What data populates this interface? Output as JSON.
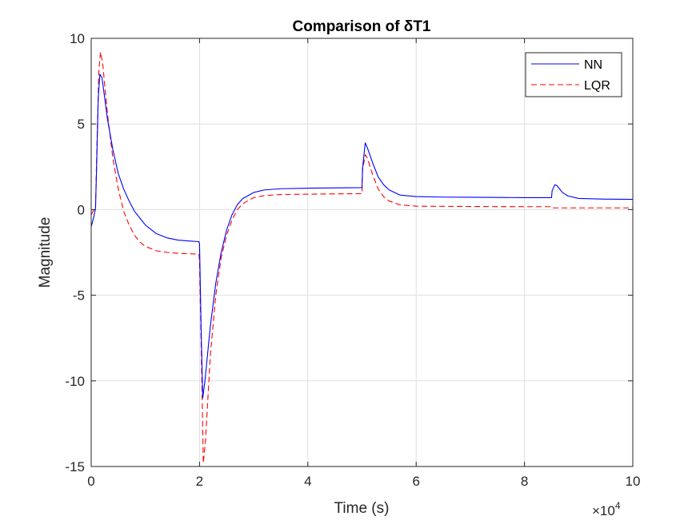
{
  "chart_data": {
    "type": "line",
    "title": "Comparison of δT1",
    "xlabel": "Time (s)",
    "ylabel": "Magnitude",
    "x_exponent_label": "×10",
    "x_exponent_power": "4",
    "xlim": [
      0,
      100000
    ],
    "ylim": [
      -15,
      10
    ],
    "grid": true,
    "legend_position": "top-right",
    "x_ticks": [
      0,
      20000,
      40000,
      60000,
      80000,
      100000
    ],
    "x_tick_labels": [
      "0",
      "2",
      "4",
      "6",
      "8",
      "10"
    ],
    "y_ticks": [
      -15,
      -10,
      -5,
      0,
      5,
      10
    ],
    "y_tick_labels": [
      "-15",
      "-10",
      "-5",
      "0",
      "5",
      "10"
    ],
    "series": [
      {
        "name": "NN",
        "color": "#0000ff",
        "style": "solid",
        "points": [
          [
            0,
            -1.0
          ],
          [
            500,
            -0.4
          ],
          [
            800,
            0.1
          ],
          [
            1000,
            2.5
          ],
          [
            1300,
            6.5
          ],
          [
            1600,
            7.9
          ],
          [
            2000,
            7.7
          ],
          [
            3000,
            5.3
          ],
          [
            4000,
            3.5
          ],
          [
            5000,
            2.1
          ],
          [
            6000,
            1.2
          ],
          [
            7000,
            0.5
          ],
          [
            8000,
            -0.1
          ],
          [
            9000,
            -0.5
          ],
          [
            10000,
            -0.9
          ],
          [
            12000,
            -1.4
          ],
          [
            14000,
            -1.65
          ],
          [
            16000,
            -1.78
          ],
          [
            18000,
            -1.83
          ],
          [
            19900,
            -1.87
          ],
          [
            20000,
            -2.0
          ],
          [
            20300,
            -7.0
          ],
          [
            20600,
            -11.0
          ],
          [
            21000,
            -10.0
          ],
          [
            22000,
            -6.8
          ],
          [
            23000,
            -4.3
          ],
          [
            24000,
            -2.5
          ],
          [
            25000,
            -1.2
          ],
          [
            26000,
            -0.3
          ],
          [
            27000,
            0.3
          ],
          [
            28000,
            0.65
          ],
          [
            30000,
            1.0
          ],
          [
            32000,
            1.15
          ],
          [
            35000,
            1.22
          ],
          [
            40000,
            1.25
          ],
          [
            45000,
            1.27
          ],
          [
            50000,
            1.28
          ],
          [
            50100,
            2.4
          ],
          [
            50600,
            3.9
          ],
          [
            51000,
            3.6
          ],
          [
            52000,
            2.7
          ],
          [
            53000,
            1.9
          ],
          [
            54000,
            1.45
          ],
          [
            55000,
            1.15
          ],
          [
            57000,
            0.85
          ],
          [
            60000,
            0.76
          ],
          [
            65000,
            0.73
          ],
          [
            70000,
            0.72
          ],
          [
            75000,
            0.71
          ],
          [
            80000,
            0.7
          ],
          [
            85000,
            0.7
          ],
          [
            85100,
            1.1
          ],
          [
            85600,
            1.45
          ],
          [
            86000,
            1.4
          ],
          [
            87000,
            1.0
          ],
          [
            88000,
            0.8
          ],
          [
            90000,
            0.65
          ],
          [
            95000,
            0.61
          ],
          [
            100000,
            0.6
          ]
        ]
      },
      {
        "name": "LQR",
        "color": "#ff0000",
        "style": "dashed",
        "points": [
          [
            0,
            -0.3
          ],
          [
            500,
            0.0
          ],
          [
            800,
            0.1
          ],
          [
            1000,
            3.0
          ],
          [
            1400,
            8.0
          ],
          [
            1700,
            9.2
          ],
          [
            2100,
            8.6
          ],
          [
            3000,
            5.6
          ],
          [
            4000,
            3.0
          ],
          [
            5000,
            1.2
          ],
          [
            6000,
            -0.1
          ],
          [
            7000,
            -0.9
          ],
          [
            8000,
            -1.5
          ],
          [
            9000,
            -1.9
          ],
          [
            10000,
            -2.15
          ],
          [
            12000,
            -2.4
          ],
          [
            14000,
            -2.5
          ],
          [
            16000,
            -2.55
          ],
          [
            18000,
            -2.58
          ],
          [
            19900,
            -2.6
          ],
          [
            20000,
            -3.0
          ],
          [
            20400,
            -9.5
          ],
          [
            20700,
            -14.8
          ],
          [
            21100,
            -13.5
          ],
          [
            22000,
            -8.5
          ],
          [
            23000,
            -5.0
          ],
          [
            24000,
            -2.8
          ],
          [
            25000,
            -1.5
          ],
          [
            26000,
            -0.6
          ],
          [
            27000,
            0.0
          ],
          [
            28000,
            0.35
          ],
          [
            30000,
            0.7
          ],
          [
            32000,
            0.82
          ],
          [
            35000,
            0.88
          ],
          [
            40000,
            0.9
          ],
          [
            45000,
            0.92
          ],
          [
            50000,
            0.93
          ],
          [
            50100,
            2.3
          ],
          [
            50600,
            3.2
          ],
          [
            51000,
            3.0
          ],
          [
            52000,
            2.0
          ],
          [
            53000,
            1.2
          ],
          [
            54000,
            0.75
          ],
          [
            55000,
            0.5
          ],
          [
            57000,
            0.28
          ],
          [
            60000,
            0.2
          ],
          [
            70000,
            0.18
          ],
          [
            80000,
            0.17
          ],
          [
            85000,
            0.17
          ],
          [
            85100,
            0.1
          ],
          [
            90000,
            0.1
          ],
          [
            100000,
            0.1
          ]
        ]
      }
    ]
  }
}
